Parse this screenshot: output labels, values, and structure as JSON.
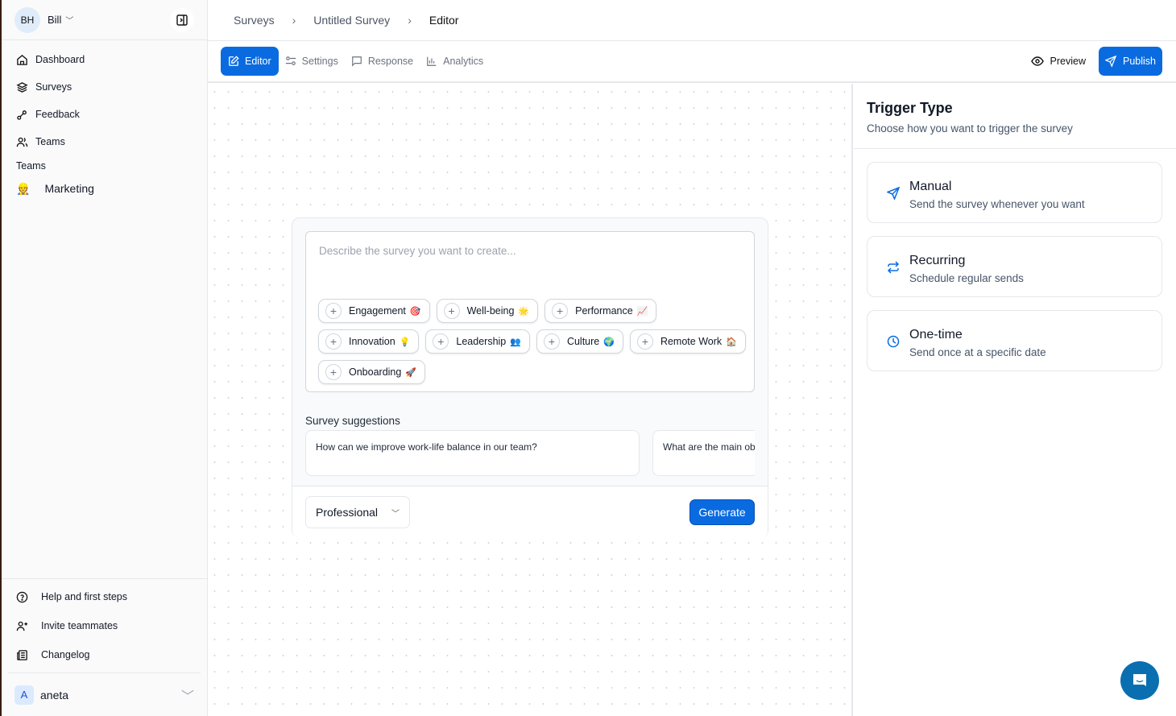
{
  "sidebar": {
    "user": {
      "initials": "BH",
      "name": "Bill"
    },
    "nav": [
      {
        "label": "Dashboard",
        "icon": "home-icon"
      },
      {
        "label": "Surveys",
        "icon": "layers-icon"
      },
      {
        "label": "Feedback",
        "icon": "feedback-icon"
      },
      {
        "label": "Teams",
        "icon": "users-icon"
      }
    ],
    "teams_heading": "Teams",
    "teams": [
      {
        "label": "Marketing",
        "emoji": "👷"
      }
    ],
    "bottom": [
      {
        "label": "Help and first steps",
        "icon": "help-circle-icon"
      },
      {
        "label": "Invite teammates",
        "icon": "user-plus-icon"
      },
      {
        "label": "Changelog",
        "icon": "newspaper-icon"
      }
    ],
    "account": {
      "initial": "A",
      "name": "aneta"
    }
  },
  "breadcrumb": [
    "Surveys",
    "Untitled Survey",
    "Editor"
  ],
  "tabs": [
    {
      "label": "Editor",
      "active": true
    },
    {
      "label": "Settings"
    },
    {
      "label": "Response"
    },
    {
      "label": "Analytics"
    }
  ],
  "actions": {
    "preview": "Preview",
    "publish": "Publish"
  },
  "editor": {
    "placeholder": "Describe the survey you want to create...",
    "chips": [
      {
        "label": "Engagement",
        "emoji": "🎯"
      },
      {
        "label": "Well-being",
        "emoji": "🌟"
      },
      {
        "label": "Performance",
        "emoji": "📈"
      },
      {
        "label": "Innovation",
        "emoji": "💡"
      },
      {
        "label": "Leadership",
        "emoji": "👥"
      },
      {
        "label": "Culture",
        "emoji": "🌍"
      },
      {
        "label": "Remote Work",
        "emoji": "🏠"
      },
      {
        "label": "Onboarding",
        "emoji": "🚀"
      }
    ],
    "suggestions_title": "Survey suggestions",
    "suggestions": [
      "How can we improve work-life balance in our team?",
      "What are the main ob"
    ],
    "tone": "Professional",
    "generate": "Generate"
  },
  "trigger": {
    "title": "Trigger Type",
    "subtitle": "Choose how you want to trigger the survey",
    "options": [
      {
        "title": "Manual",
        "desc": "Send the survey whenever you want",
        "icon": "send-icon"
      },
      {
        "title": "Recurring",
        "desc": "Schedule regular sends",
        "icon": "repeat-icon"
      },
      {
        "title": "One-time",
        "desc": "Send once at a specific date",
        "icon": "clock-icon"
      }
    ]
  },
  "colors": {
    "accent": "#0a6be0",
    "chat": "#0a6fb0"
  }
}
